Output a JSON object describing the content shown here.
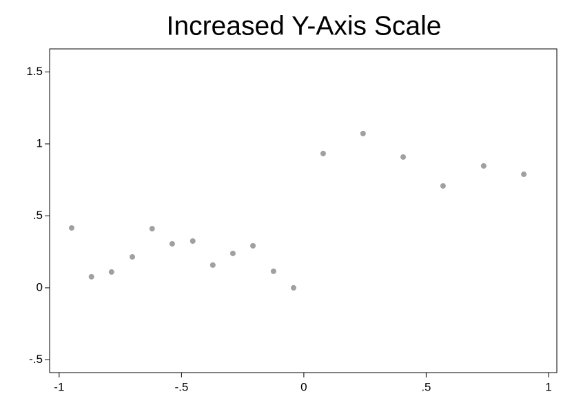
{
  "chart_data": {
    "type": "scatter",
    "title": "Increased Y-Axis Scale",
    "x": [
      -0.949,
      -0.868,
      -0.786,
      -0.701,
      -0.62,
      -0.538,
      -0.454,
      -0.372,
      -0.29,
      -0.208,
      -0.124,
      -0.042,
      0.079,
      0.242,
      0.406,
      0.569,
      0.735,
      0.899
    ],
    "values": [
      0.416,
      0.077,
      0.11,
      0.215,
      0.411,
      0.306,
      0.325,
      0.158,
      0.239,
      0.292,
      0.115,
      0.0,
      0.933,
      1.072,
      0.909,
      0.708,
      0.847,
      0.789
    ],
    "color": "#a0a0a0",
    "xlim": [
      -1.039,
      1.034
    ],
    "ylim": [
      -0.589,
      1.66
    ],
    "xticks": [
      -1,
      {
        "value": -0.5,
        "label": "-.5"
      },
      0,
      {
        "value": 0.5,
        "label": ".5"
      },
      1
    ],
    "yticks": [
      {
        "value": -0.5,
        "label": "-.5"
      },
      0,
      {
        "value": 0.5,
        "label": ".5"
      },
      1,
      1.5
    ],
    "grid": false
  }
}
